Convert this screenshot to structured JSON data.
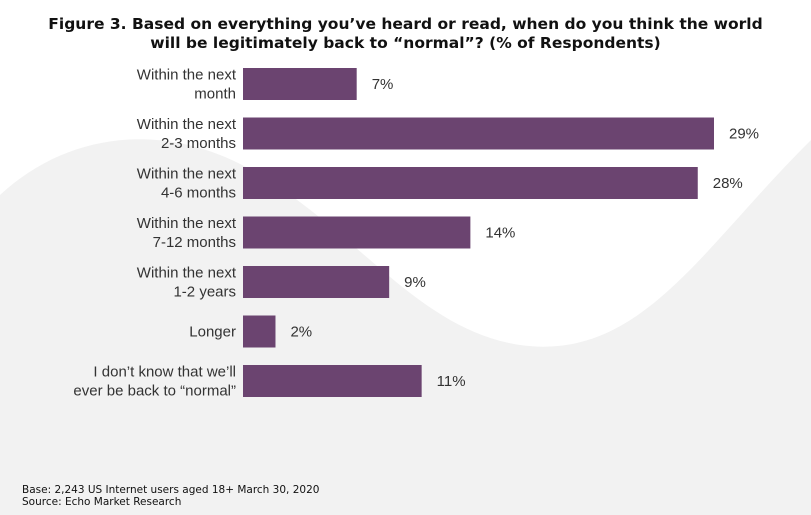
{
  "chart_data": {
    "type": "bar",
    "orientation": "horizontal",
    "title": "Figure 3. Based on everything you’ve heard or read, when do you think the world will be legitimately back to “normal”? (% of Respondents)",
    "title_lines": [
      "Figure 3. Based on everything you’ve heard or read, when do you think the world",
      "will be legitimately back to “normal”? (% of Respondents)"
    ],
    "categories": [
      [
        "Within the next",
        "month"
      ],
      [
        "Within the next",
        "2-3 months"
      ],
      [
        "Within the next",
        "4-6 months"
      ],
      [
        "Within the next",
        "7-12 months"
      ],
      [
        "Within the next",
        "1-2 years"
      ],
      [
        "Longer"
      ],
      [
        "I don’t know that we’ll",
        "ever be back to “normal”"
      ]
    ],
    "values": [
      7,
      29,
      28,
      14,
      9,
      2,
      11
    ],
    "value_suffix": "%",
    "xlim": [
      0,
      29
    ],
    "bar_color": "#6b4470",
    "grid": false
  },
  "footer": {
    "base": "Base: 2,243 US Internet users aged 18+  March 30, 2020",
    "source": "Source: Echo Market Research"
  }
}
